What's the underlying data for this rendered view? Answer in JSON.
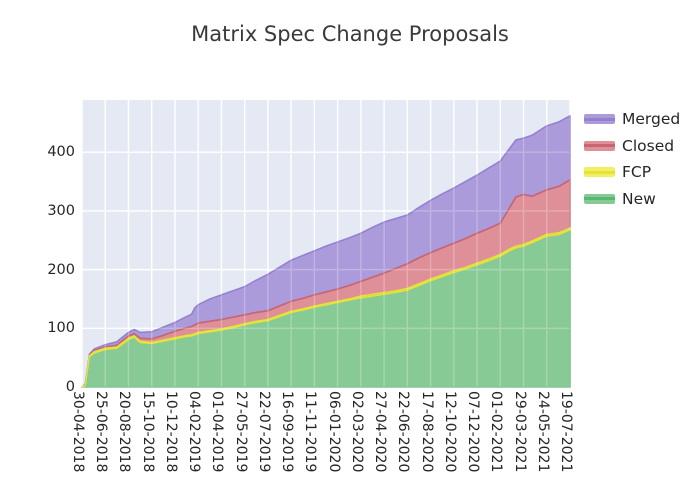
{
  "figure": {
    "background": "#ffffff",
    "plot_background": "#e4e9f4",
    "grid_color": "#ffffff",
    "tick_text_color": "#262626",
    "title_color": "#3a3a3a"
  },
  "legend": {
    "items_top_to_bottom": [
      "Merged",
      "Closed",
      "FCP",
      "New"
    ]
  },
  "chart_data": {
    "type": "area",
    "stacked": true,
    "title": "Matrix Spec Change Proposals",
    "xlabel": "",
    "ylabel": "",
    "grid": true,
    "legend_position": "outside-top-right",
    "yticks": [
      0,
      100,
      200,
      300,
      400
    ],
    "ylim": [
      0,
      489
    ],
    "x_tick_labels": [
      "30-04-2018",
      "25-06-2018",
      "20-08-2018",
      "15-10-2018",
      "10-12-2018",
      "04-02-2019",
      "01-04-2019",
      "27-05-2019",
      "22-07-2019",
      "16-09-2019",
      "11-11-2019",
      "06-01-2020",
      "02-03-2020",
      "27-04-2020",
      "22-06-2020",
      "17-08-2020",
      "12-10-2020",
      "07-12-2020",
      "01-02-2021",
      "29-03-2021",
      "24-05-2021",
      "19-07-2021"
    ],
    "x_axis": {
      "unit": "days-since-30-04-2018",
      "min": 0,
      "max": 1176,
      "tick_step_days": 56
    },
    "sample_days": [
      0,
      8,
      18,
      30,
      56,
      84,
      112,
      126,
      140,
      168,
      196,
      224,
      252,
      264,
      272,
      280,
      308,
      336,
      364,
      392,
      420,
      448,
      476,
      504,
      532,
      560,
      588,
      616,
      644,
      672,
      700,
      728,
      756,
      784,
      812,
      840,
      868,
      896,
      924,
      952,
      980,
      1008,
      1030,
      1046,
      1064,
      1085,
      1120,
      1150,
      1176
    ],
    "stack_order_bottom_to_top": [
      "New",
      "FCP",
      "Closed",
      "Merged"
    ],
    "series": [
      {
        "name": "New",
        "fill": "#88ca96",
        "edge": "#58b873",
        "values": [
          0,
          3,
          52,
          58,
          64,
          66,
          81,
          85,
          76,
          74,
          78,
          82,
          86,
          87,
          89,
          91,
          94,
          97,
          101,
          106,
          110,
          113,
          120,
          127,
          131,
          136,
          140,
          144,
          148,
          152,
          155,
          158,
          161,
          165,
          173,
          181,
          188,
          195,
          201,
          208,
          215,
          223,
          232,
          237,
          240,
          246,
          257,
          260,
          268
        ]
      },
      {
        "name": "FCP",
        "fill": "#f2f062",
        "edge": "#e3e23e",
        "values": [
          0,
          0,
          1,
          2,
          2,
          2,
          2,
          2,
          2,
          2,
          2,
          2,
          2,
          2,
          2,
          2,
          2,
          2,
          2,
          2,
          2,
          2,
          2,
          2,
          2,
          2,
          2,
          2,
          2,
          3,
          3,
          3,
          3,
          3,
          3,
          3,
          3,
          3,
          3,
          3,
          3,
          3,
          3,
          3,
          3,
          3,
          3,
          3,
          3
        ]
      },
      {
        "name": "Closed",
        "fill": "#df8f97",
        "edge": "#c96570",
        "values": [
          0,
          1,
          1,
          2,
          2,
          3,
          4,
          4,
          5,
          6,
          8,
          11,
          13,
          14,
          15,
          16,
          16,
          16,
          16,
          15,
          15,
          15,
          16,
          17,
          18,
          19,
          20,
          21,
          23,
          25,
          29,
          33,
          38,
          42,
          44,
          45,
          46,
          47,
          49,
          51,
          52,
          53,
          70,
          84,
          85,
          76,
          76,
          79,
          82
        ]
      },
      {
        "name": "Merged",
        "fill": "#ab9bda",
        "edge": "#9580cf",
        "values": [
          0,
          1,
          2,
          3,
          4,
          6,
          6,
          7,
          10,
          12,
          14,
          15,
          19,
          21,
          29,
          31,
          38,
          42,
          45,
          48,
          55,
          62,
          66,
          70,
          73,
          75,
          78,
          80,
          81,
          82,
          85,
          87,
          85,
          83,
          86,
          89,
          92,
          94,
          97,
          99,
          103,
          106,
          101,
          97,
          96,
          104,
          109,
          110,
          109
        ]
      }
    ]
  }
}
